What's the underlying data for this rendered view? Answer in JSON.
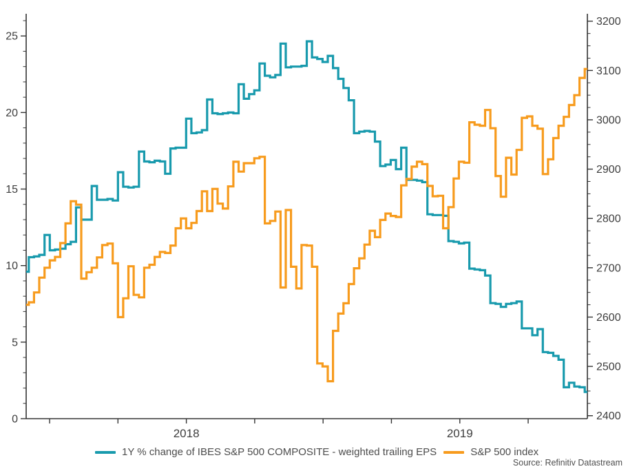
{
  "source": "Source: Refinitiv Datastream",
  "colors": {
    "eps_line": "#189aad",
    "spx_line": "#f79b1d",
    "axis": "#333333",
    "tick_label": "#3d3d3d"
  },
  "legend": {
    "eps_label": "1Y % change of IBES S&P 500 COMPOSITE - weighted trailing EPS",
    "spx_label": "S&P 500 index"
  },
  "chart_data": {
    "type": "line",
    "title": "",
    "frequency": "weekly",
    "x_axis": {
      "year_labels": [
        {
          "text": "2018",
          "week": 30.54
        },
        {
          "text": "2019",
          "week": 82.68
        }
      ],
      "quarter_tick_weeks": [
        4.47,
        17.5,
        30.54,
        43.57,
        56.61,
        69.64,
        82.68,
        95.71
      ]
    },
    "left_axis": {
      "label_ticks": [
        0,
        5,
        10,
        15,
        20,
        25
      ],
      "minor_step": 1,
      "range": [
        0,
        26.45
      ]
    },
    "right_axis": {
      "label_ticks": [
        2400,
        2500,
        2600,
        2700,
        2800,
        2900,
        3000,
        3100,
        3200
      ],
      "minor_step": 25,
      "range": [
        2394,
        3215
      ]
    },
    "series": [
      {
        "name": "1Y % change of IBES S&P 500 COMPOSITE - weighted trailing EPS",
        "axis": "left",
        "color": "#189aad",
        "values": [
          9.6,
          10.55,
          10.6,
          10.7,
          12.0,
          11.0,
          11.05,
          11.1,
          11.4,
          11.55,
          13.8,
          13.0,
          13.0,
          15.2,
          14.3,
          14.3,
          14.35,
          14.25,
          16.1,
          15.15,
          15.1,
          15.15,
          17.45,
          16.8,
          16.75,
          16.85,
          16.8,
          16.0,
          17.65,
          17.7,
          17.7,
          19.6,
          18.65,
          18.7,
          18.85,
          20.85,
          19.95,
          19.9,
          19.95,
          20.0,
          19.95,
          21.85,
          20.9,
          21.2,
          21.45,
          23.2,
          22.4,
          22.3,
          22.45,
          24.5,
          22.95,
          23.0,
          23.0,
          23.05,
          24.65,
          23.6,
          23.5,
          23.3,
          23.7,
          22.9,
          22.2,
          21.6,
          20.8,
          18.65,
          18.75,
          18.8,
          18.75,
          18.1,
          16.5,
          16.6,
          16.9,
          16.3,
          17.7,
          15.6,
          15.6,
          15.55,
          15.45,
          13.35,
          13.3,
          13.3,
          13.25,
          11.6,
          11.55,
          11.45,
          11.5,
          9.8,
          9.75,
          9.7,
          9.35,
          7.55,
          7.5,
          7.3,
          7.5,
          7.55,
          7.65,
          5.9,
          5.9,
          5.45,
          5.85,
          4.35,
          4.3,
          4.1,
          3.85,
          2.05,
          2.35,
          2.1,
          2.05,
          1.75
        ]
      },
      {
        "name": "S&P 500 index",
        "axis": "right",
        "color": "#f79b1d",
        "values": [
          2625,
          2630,
          2650,
          2680,
          2700,
          2715,
          2722,
          2750,
          2790,
          2835,
          2828,
          2678,
          2691,
          2700,
          2721,
          2746,
          2749,
          2709,
          2600,
          2638,
          2703,
          2645,
          2640,
          2700,
          2706,
          2722,
          2732,
          2730,
          2745,
          2780,
          2800,
          2780,
          2791,
          2815,
          2855,
          2815,
          2860,
          2830,
          2820,
          2865,
          2915,
          2895,
          2912,
          2912,
          2922,
          2925,
          2790,
          2795,
          2814,
          2660,
          2817,
          2702,
          2658,
          2746,
          2745,
          2702,
          2506,
          2500,
          2470,
          2572,
          2607,
          2628,
          2667,
          2699,
          2719,
          2747,
          2775,
          2762,
          2797,
          2810,
          2805,
          2803,
          2867,
          2880,
          2905,
          2915,
          2910,
          2866,
          2845,
          2846,
          2780,
          2823,
          2881,
          2915,
          2913,
          2995,
          2990,
          2988,
          3020,
          2983,
          2886,
          2844,
          2923,
          2889,
          2939,
          3004,
          3007,
          2988,
          2982,
          2890,
          2920,
          2963,
          2988,
          3006,
          3030,
          3050,
          3085,
          3103
        ]
      }
    ]
  }
}
